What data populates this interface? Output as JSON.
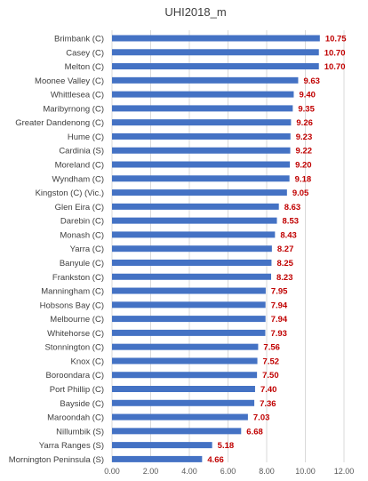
{
  "chart_data": {
    "type": "bar",
    "orientation": "horizontal",
    "title": "UHI2018_m",
    "categories": [
      "Brimbank (C)",
      "Casey (C)",
      "Melton (C)",
      "Moonee Valley (C)",
      "Whittlesea (C)",
      "Maribyrnong (C)",
      "Greater Dandenong (C)",
      "Hume (C)",
      "Cardinia (S)",
      "Moreland (C)",
      "Wyndham (C)",
      "Kingston (C) (Vic.)",
      "Glen Eira (C)",
      "Darebin (C)",
      "Monash (C)",
      "Yarra (C)",
      "Banyule (C)",
      "Frankston (C)",
      "Manningham (C)",
      "Hobsons Bay (C)",
      "Melbourne (C)",
      "Whitehorse (C)",
      "Stonnington (C)",
      "Knox (C)",
      "Boroondara (C)",
      "Port Phillip (C)",
      "Bayside (C)",
      "Maroondah (C)",
      "Nillumbik (S)",
      "Yarra Ranges (S)",
      "Mornington Peninsula (S)"
    ],
    "values": [
      10.75,
      10.7,
      10.7,
      9.63,
      9.4,
      9.35,
      9.26,
      9.23,
      9.22,
      9.2,
      9.18,
      9.05,
      8.63,
      8.53,
      8.43,
      8.27,
      8.25,
      8.23,
      7.95,
      7.94,
      7.94,
      7.93,
      7.56,
      7.52,
      7.5,
      7.4,
      7.36,
      7.03,
      6.68,
      5.18,
      4.66
    ],
    "value_labels": [
      "10.75",
      "10.70",
      "10.70",
      "9.63",
      "9.40",
      "9.35",
      "9.26",
      "9.23",
      "9.22",
      "9.20",
      "9.18",
      "9.05",
      "8.63",
      "8.53",
      "8.43",
      "8.27",
      "8.25",
      "8.23",
      "7.95",
      "7.94",
      "7.94",
      "7.93",
      "7.56",
      "7.52",
      "7.50",
      "7.40",
      "7.36",
      "7.03",
      "6.68",
      "5.18",
      "4.66"
    ],
    "xlim": [
      0,
      12
    ],
    "x_ticks": [
      "0.00",
      "2.00",
      "4.00",
      "6.00",
      "8.00",
      "10.00",
      "12.00"
    ],
    "grid": true,
    "legend": "none",
    "colors": {
      "bar": "#4472c4",
      "value_label": "#c00000",
      "category_label": "#404040",
      "tick_label": "#595959",
      "grid": "#d9d9d9",
      "title": "#404040"
    }
  }
}
